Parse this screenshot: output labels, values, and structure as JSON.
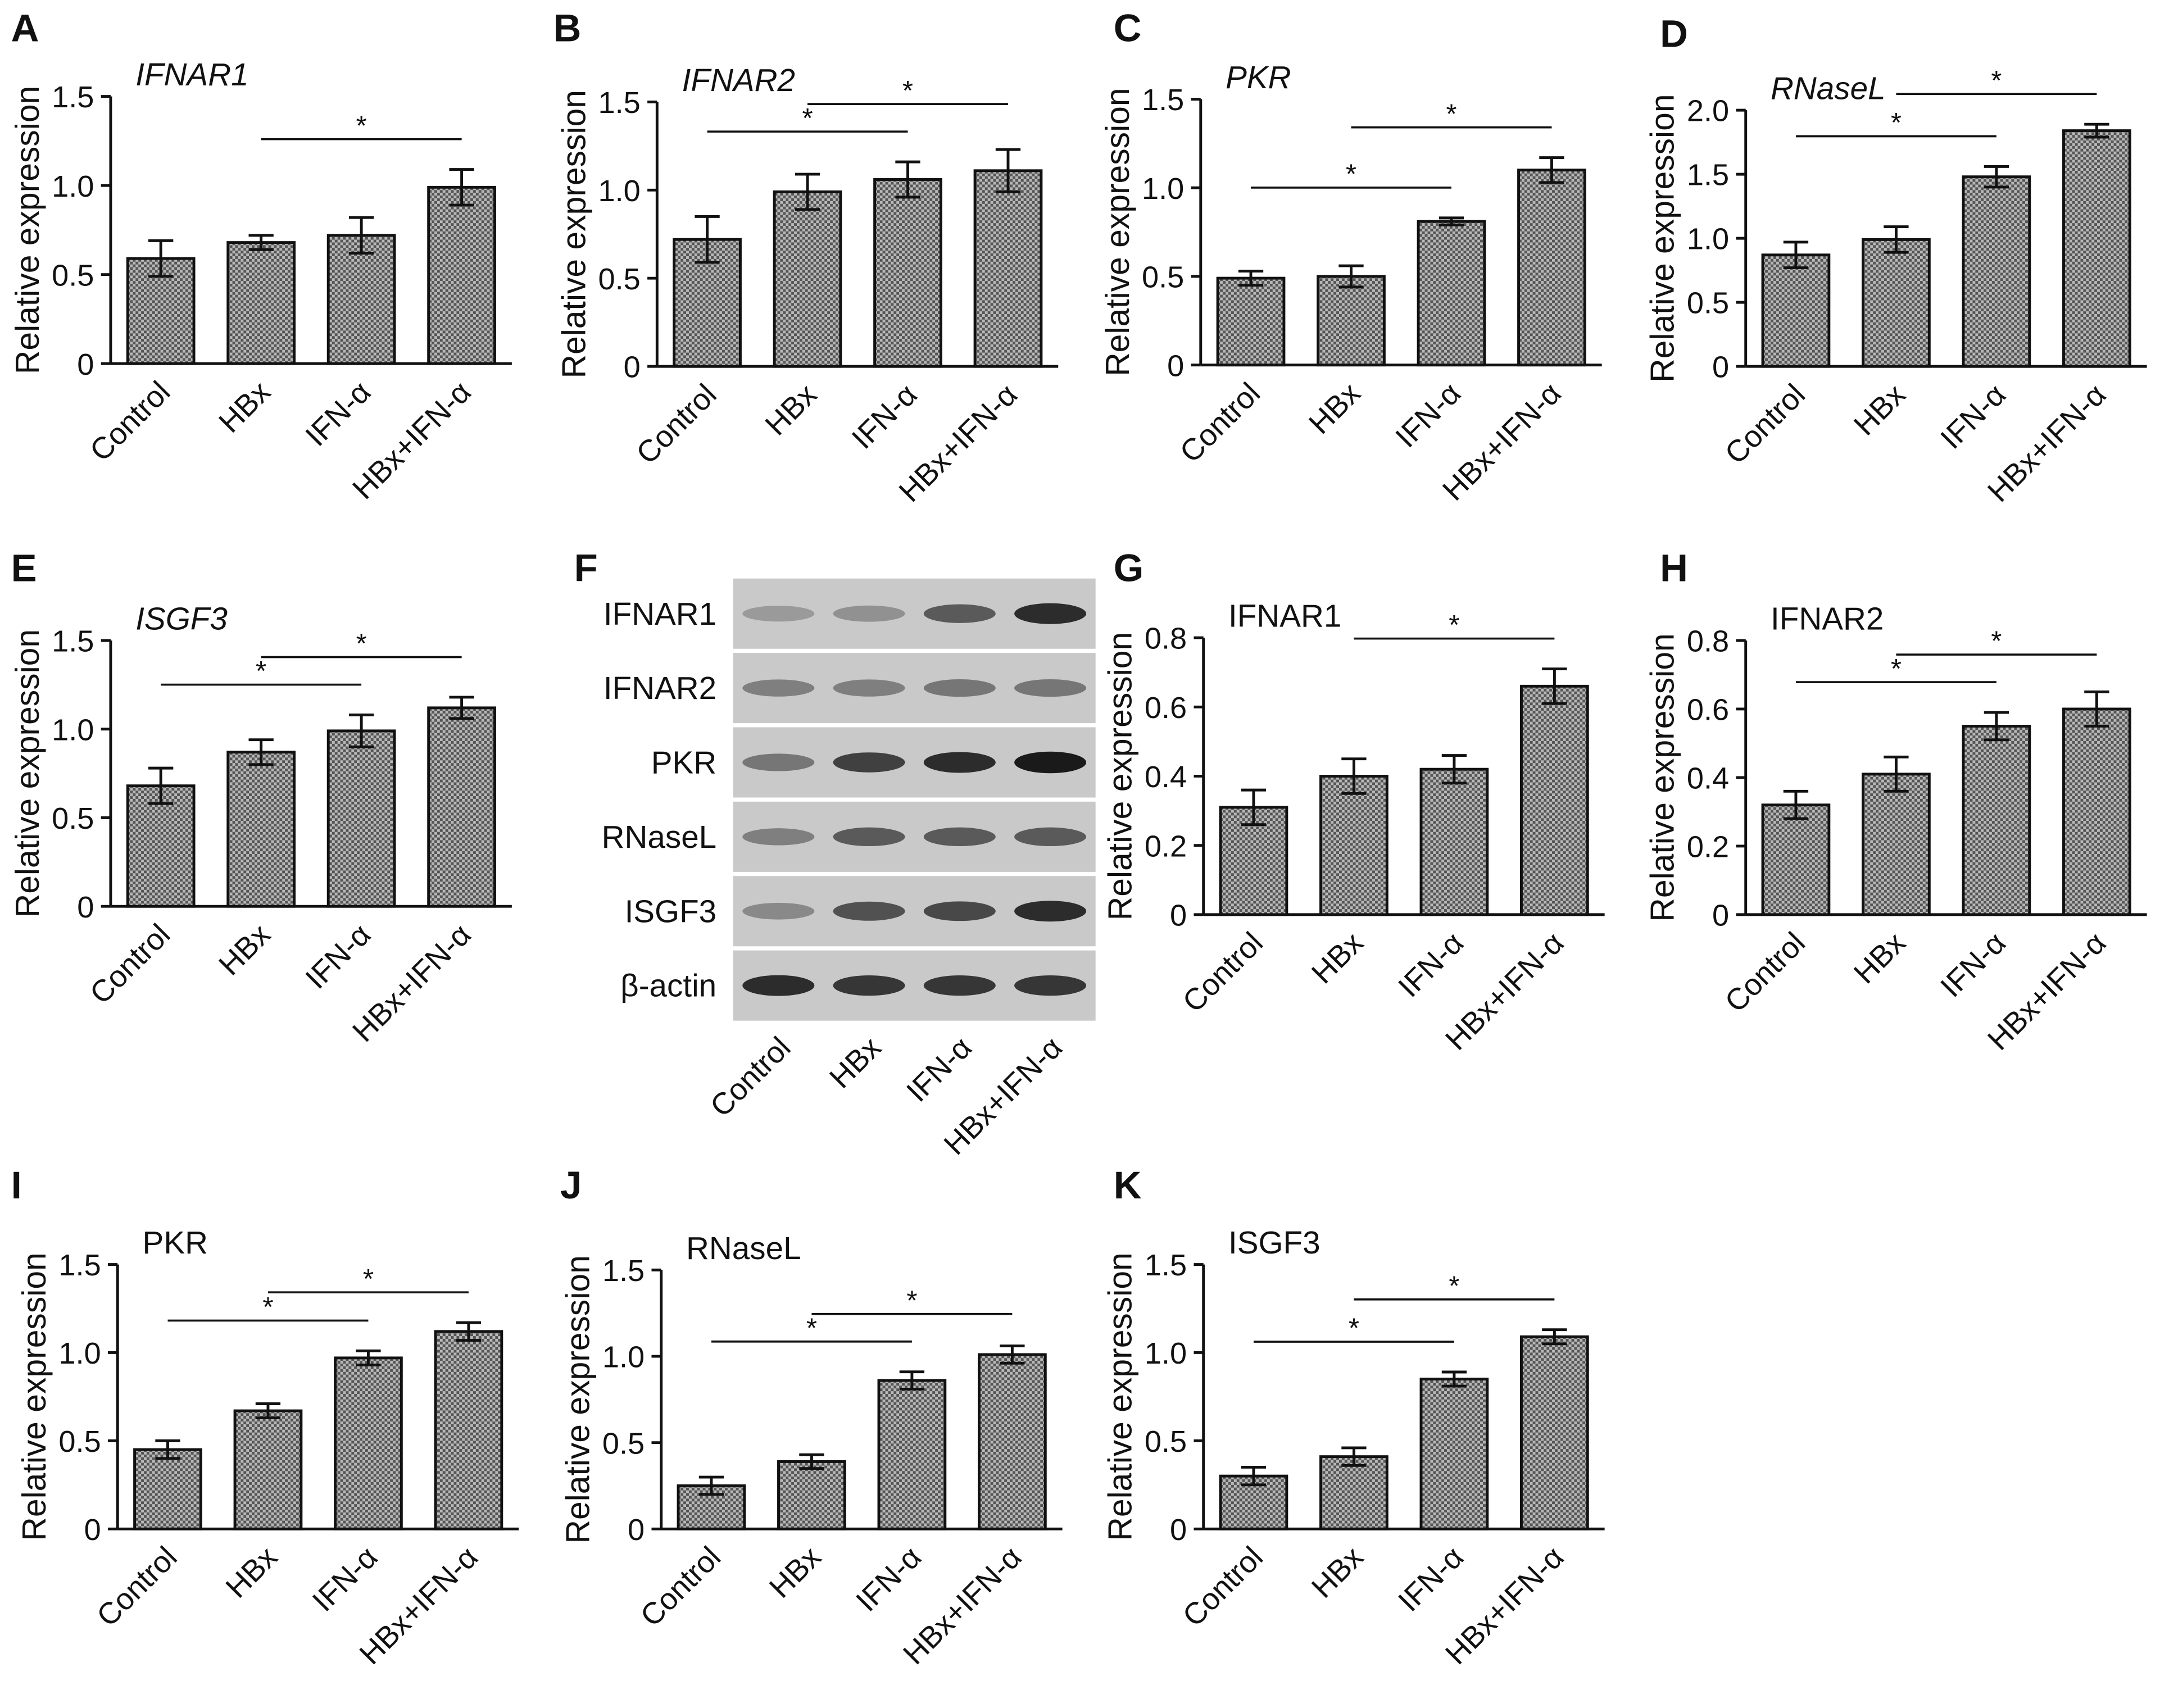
{
  "chart_data": [
    {
      "type": "bar",
      "panel": "A",
      "title": "IFNAR1",
      "italic": true,
      "y_label": "Relative expression",
      "categories": [
        "Control",
        "HBx",
        "IFN-α",
        "HBx+IFN-α"
      ],
      "values": [
        0.59,
        0.68,
        0.72,
        0.99
      ],
      "errors": [
        0.1,
        0.04,
        0.1,
        0.1
      ],
      "ylim": [
        0,
        1.5
      ],
      "yticks": [
        0,
        0.5,
        {
          "value": 1,
          "label": "1.0"
        },
        1.5
      ],
      "brackets": [
        {
          "pair": [
            1,
            3
          ],
          "label": "*"
        }
      ]
    },
    {
      "type": "bar",
      "panel": "B",
      "title": "IFNAR2",
      "italic": true,
      "y_label": "Relative expression",
      "categories": [
        "Control",
        "HBx",
        "IFN-α",
        "HBx+IFN-α"
      ],
      "values": [
        0.72,
        0.99,
        1.06,
        1.11
      ],
      "errors": [
        0.13,
        0.1,
        0.1,
        0.12
      ],
      "ylim": [
        0,
        1.5
      ],
      "yticks": [
        0,
        0.5,
        {
          "value": 1,
          "label": "1.0"
        },
        1.5
      ],
      "brackets": [
        {
          "pair": [
            0,
            2
          ],
          "label": "*"
        },
        {
          "pair": [
            1,
            3
          ],
          "label": "*"
        }
      ]
    },
    {
      "type": "bar",
      "panel": "C",
      "title": "PKR",
      "italic": true,
      "y_label": "Relative expression",
      "categories": [
        "Control",
        "HBx",
        "IFN-α",
        "HBx+IFN-α"
      ],
      "values": [
        0.49,
        0.5,
        0.81,
        1.1
      ],
      "errors": [
        0.04,
        0.06,
        0.02,
        0.07
      ],
      "ylim": [
        0,
        1.5
      ],
      "yticks": [
        0,
        0.5,
        {
          "value": 1,
          "label": "1.0"
        },
        1.5
      ],
      "brackets": [
        {
          "pair": [
            0,
            2
          ],
          "label": "*"
        },
        {
          "pair": [
            1,
            3
          ],
          "label": "*"
        }
      ]
    },
    {
      "type": "bar",
      "panel": "D",
      "title": "RNaseL",
      "italic": true,
      "y_label": "Relative expression",
      "categories": [
        "Control",
        "HBx",
        "IFN-α",
        "HBx+IFN-α"
      ],
      "values": [
        0.87,
        0.99,
        1.48,
        1.84
      ],
      "errors": [
        0.1,
        0.1,
        0.08,
        0.05
      ],
      "ylim": [
        0,
        2
      ],
      "yticks": [
        0,
        0.5,
        {
          "value": 1,
          "label": "1.0"
        },
        1.5,
        {
          "value": 2,
          "label": "2.0"
        }
      ],
      "brackets": [
        {
          "pair": [
            0,
            2
          ],
          "label": "*"
        },
        {
          "pair": [
            1,
            3
          ],
          "label": "*"
        }
      ]
    },
    {
      "type": "bar",
      "panel": "E",
      "title": "ISGF3",
      "italic": true,
      "y_label": "Relative expression",
      "categories": [
        "Control",
        "HBx",
        "IFN-α",
        "HBx+IFN-α"
      ],
      "values": [
        0.68,
        0.87,
        0.99,
        1.12
      ],
      "errors": [
        0.1,
        0.07,
        0.09,
        0.06
      ],
      "ylim": [
        0,
        1.5
      ],
      "yticks": [
        0,
        0.5,
        {
          "value": 1,
          "label": "1.0"
        },
        1.5
      ],
      "brackets": [
        {
          "pair": [
            0,
            2
          ],
          "label": "*"
        },
        {
          "pair": [
            1,
            3
          ],
          "label": "*"
        }
      ]
    },
    {
      "type": "blot",
      "panel": "F",
      "rows": [
        "IFNAR1",
        "IFNAR2",
        "PKR",
        "RNaseL",
        "ISGF3",
        "β-actin"
      ],
      "categories": [
        "Control",
        "HBx",
        "IFN-α",
        "HBx+IFN-α"
      ]
    },
    {
      "type": "bar",
      "panel": "G",
      "title": "IFNAR1",
      "italic": false,
      "y_label": "Relative expression",
      "categories": [
        "Control",
        "HBx",
        "IFN-α",
        "HBx+IFN-α"
      ],
      "values": [
        0.31,
        0.4,
        0.42,
        0.66
      ],
      "errors": [
        0.05,
        0.05,
        0.04,
        0.05
      ],
      "ylim": [
        0,
        0.8
      ],
      "yticks": [
        0,
        0.2,
        0.4,
        0.6,
        0.8
      ],
      "brackets": [
        {
          "pair": [
            1,
            3
          ],
          "label": "*"
        }
      ]
    },
    {
      "type": "bar",
      "panel": "H",
      "title": "IFNAR2",
      "italic": false,
      "y_label": "Relative expression",
      "categories": [
        "Control",
        "HBx",
        "IFN-α",
        "HBx+IFN-α"
      ],
      "values": [
        0.32,
        0.41,
        0.55,
        0.6
      ],
      "errors": [
        0.04,
        0.05,
        0.04,
        0.05
      ],
      "ylim": [
        0,
        0.8
      ],
      "yticks": [
        0,
        0.2,
        0.4,
        0.6,
        0.8
      ],
      "brackets": [
        {
          "pair": [
            0,
            2
          ],
          "label": "*"
        },
        {
          "pair": [
            1,
            3
          ],
          "label": "*"
        }
      ]
    },
    {
      "type": "bar",
      "panel": "I",
      "title": "PKR",
      "italic": false,
      "y_label": "Relative expression",
      "categories": [
        "Control",
        "HBx",
        "IFN-α",
        "HBx+IFN-α"
      ],
      "values": [
        0.45,
        0.67,
        0.97,
        1.12
      ],
      "errors": [
        0.05,
        0.04,
        0.04,
        0.05
      ],
      "ylim": [
        0,
        1.5
      ],
      "yticks": [
        0,
        0.5,
        {
          "value": 1,
          "label": "1.0"
        },
        1.5
      ],
      "brackets": [
        {
          "pair": [
            0,
            2
          ],
          "label": "*"
        },
        {
          "pair": [
            1,
            3
          ],
          "label": "*"
        }
      ]
    },
    {
      "type": "bar",
      "panel": "J",
      "title": "RNaseL",
      "italic": false,
      "y_label": "Relative expression",
      "categories": [
        "Control",
        "HBx",
        "IFN-α",
        "HBx+IFN-α"
      ],
      "values": [
        0.25,
        0.39,
        0.86,
        1.01
      ],
      "errors": [
        0.05,
        0.04,
        0.05,
        0.05
      ],
      "ylim": [
        0,
        1.5
      ],
      "yticks": [
        0,
        0.5,
        {
          "value": 1,
          "label": "1.0"
        },
        1.5
      ],
      "brackets": [
        {
          "pair": [
            0,
            2
          ],
          "label": "*"
        },
        {
          "pair": [
            1,
            3
          ],
          "label": "*"
        }
      ]
    },
    {
      "type": "bar",
      "panel": "K",
      "title": "ISGF3",
      "italic": false,
      "y_label": "Relative expression",
      "categories": [
        "Control",
        "HBx",
        "IFN-α",
        "HBx+IFN-α"
      ],
      "values": [
        0.3,
        0.41,
        0.85,
        1.09
      ],
      "errors": [
        0.05,
        0.05,
        0.04,
        0.04
      ],
      "ylim": [
        0,
        1.5
      ],
      "yticks": [
        0,
        0.5,
        {
          "value": 1,
          "label": "1.0"
        },
        1.5
      ],
      "brackets": [
        {
          "pair": [
            0,
            2
          ],
          "label": "*"
        },
        {
          "pair": [
            1,
            3
          ],
          "label": "*"
        }
      ]
    }
  ]
}
